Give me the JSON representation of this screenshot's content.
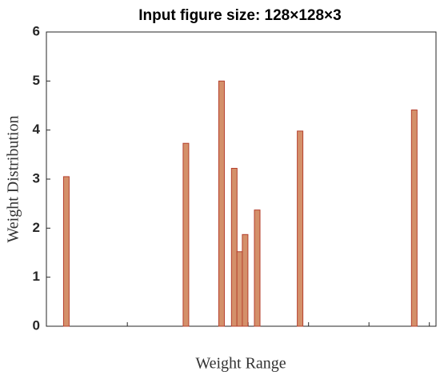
{
  "chart_data": {
    "type": "bar",
    "title": "Input figure size: 128×128×3",
    "xlabel": "Weight Range",
    "ylabel": "Weight Distribution",
    "x": [
      0.99,
      2.97,
      3.56,
      3.77,
      3.86,
      3.95,
      4.15,
      4.86,
      6.75
    ],
    "values": [
      3.05,
      3.73,
      5.0,
      3.22,
      1.52,
      1.87,
      2.37,
      3.98,
      4.41
    ],
    "color": "#d4906a",
    "edgecolor": "#b5402e",
    "xlim": [
      0.66,
      7.11
    ],
    "xticks": [
      1,
      2,
      3,
      4,
      5,
      6,
      7
    ],
    "ylim": [
      0,
      6
    ],
    "yticks": [
      0,
      1,
      2,
      3,
      4,
      5,
      6
    ],
    "grid": false
  }
}
